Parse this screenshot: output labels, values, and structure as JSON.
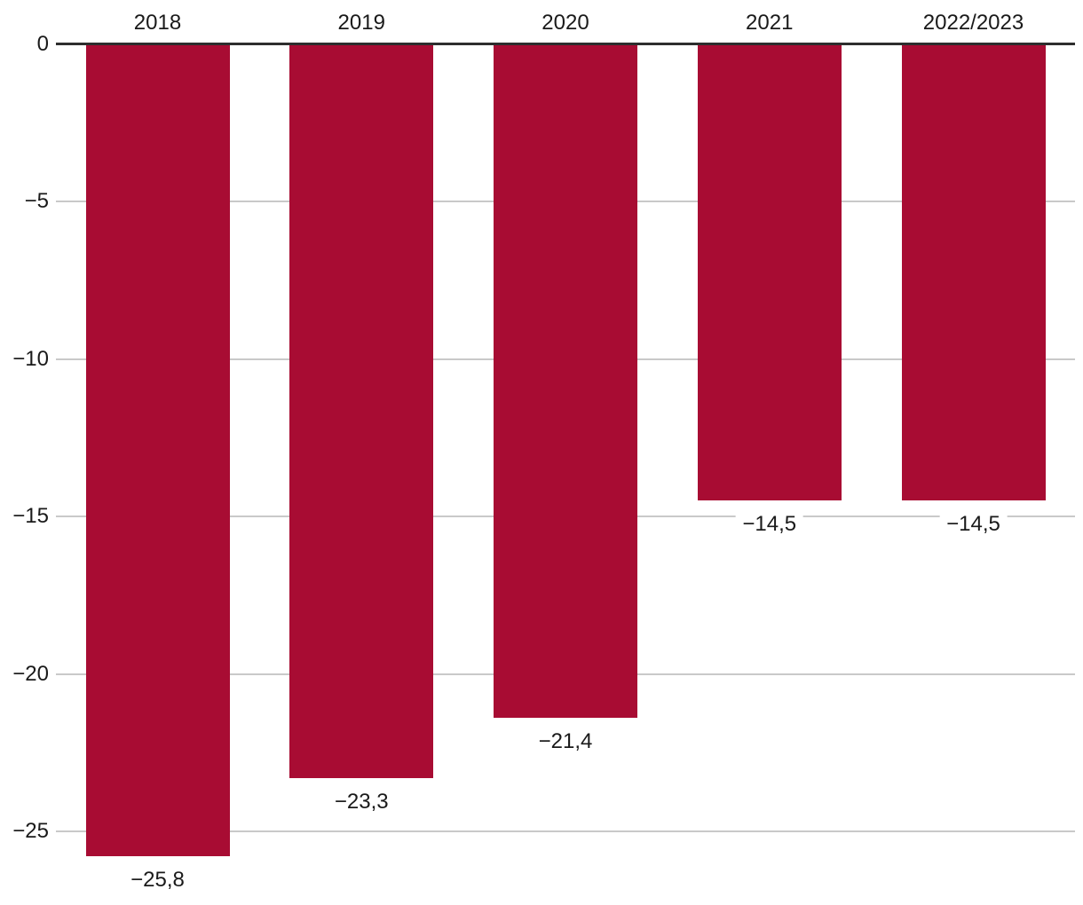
{
  "chart_data": {
    "type": "bar",
    "categories": [
      "2018",
      "2019",
      "2020",
      "2021",
      "2022/2023"
    ],
    "values": [
      -25.8,
      -23.3,
      -21.4,
      -14.5,
      -14.5
    ],
    "value_labels": [
      "−25,8",
      "−23,3",
      "−21,4",
      "−14,5",
      "−14,5"
    ],
    "series": [
      {
        "name": "",
        "values": [
          -25.8,
          -23.3,
          -21.4,
          -14.5,
          -14.5
        ]
      }
    ],
    "title": "",
    "xlabel": "",
    "ylabel": "",
    "ylim": [
      -27.5,
      0
    ],
    "yticks": [
      0,
      -5,
      -10,
      -15,
      -20,
      -25
    ],
    "ytick_labels": [
      "0",
      "−5",
      "−10",
      "−15",
      "−20",
      "−25"
    ],
    "grid": true,
    "legend_position": "none",
    "category_label_position": "top",
    "value_label_position": "below-bar",
    "colors": {
      "bar": "#A80C33",
      "gridline": "#C9C9C9",
      "zero_line": "#2E2E2E",
      "text": "#1A1A1A",
      "background": "#FFFFFF"
    }
  }
}
